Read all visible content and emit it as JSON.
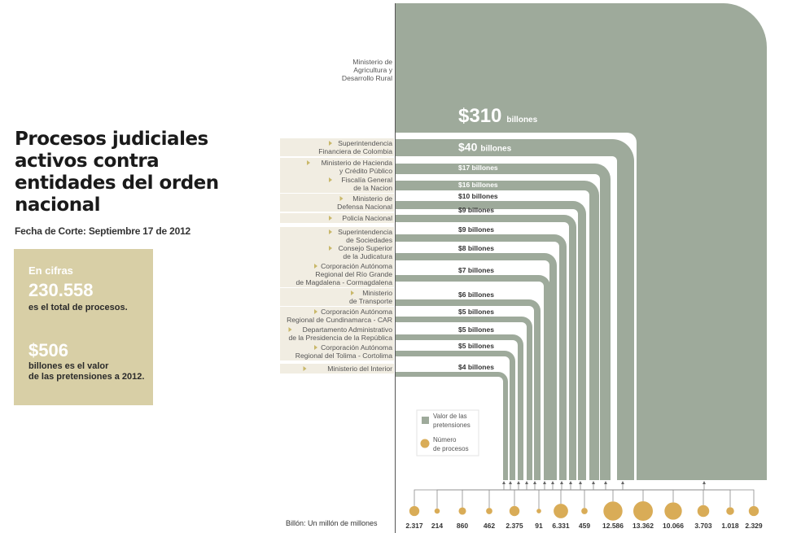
{
  "title": "Procesos judiciales activos contra entidades del orden nacional",
  "subtitle": "Fecha de Corte: Septiembre 17 de 2012",
  "cifras": {
    "heading": "En cifras",
    "total_procesos": "230.558",
    "total_procesos_text": "es el total de procesos.",
    "valor": "$506",
    "valor_text_1": "billones es el valor",
    "valor_text_2": "de las pretensiones a 2012."
  },
  "legend": {
    "valor_label_1": "Valor de las",
    "valor_label_2": "pretensiones",
    "numero_label_1": "Número",
    "numero_label_2": "de procesos"
  },
  "footnote": "Billón: Un millón de millones",
  "colors": {
    "bar": "#9eaa9b",
    "dot": "#d9ac57",
    "band": "#f1ede2",
    "box": "#d8cfa6"
  },
  "chart_data": {
    "type": "bar",
    "categories": [
      [
        "Ministerio de",
        "Agricultura y",
        "Desarrollo Rural"
      ],
      [
        "Superintendencia",
        "Financiera de Colombia"
      ],
      [
        "Ministerio de Hacienda",
        "y Crédito Público"
      ],
      [
        "Fiscalía General",
        "de la Nacion"
      ],
      [
        "Ministerio de",
        "Defensa Nacional"
      ],
      [
        "Policía Nacional"
      ],
      [
        "Superintendencia",
        "de Sociedades"
      ],
      [
        "Consejo Superior",
        "de la Judicatura"
      ],
      [
        "Corporación Autónoma",
        "Regional del Río Grande",
        "de Magdalena - Cormagdalena"
      ],
      [
        "Ministerio",
        "de Transporte"
      ],
      [
        "Corporación Autónoma",
        "Regional de Cundinamarca - CAR"
      ],
      [
        "Departamento Administrativo",
        "de la Presidencia de la República"
      ],
      [
        "Corporación Autónoma",
        "Regional del Tolima - Cortolima"
      ],
      [
        "Ministerio del Interior"
      ]
    ],
    "series": [
      {
        "name": "Valor de las pretensiones",
        "values": [
          310,
          40,
          17,
          16,
          10,
          9,
          9,
          8,
          7,
          6,
          5,
          5,
          5,
          4
        ],
        "labels": [
          "$310",
          "$40",
          "$17 billones",
          "$16 billones",
          "$10 billones",
          "$9 billones",
          "$9 billones",
          "$8 billones",
          "$7 billones",
          "$6 billones",
          "$5 billones",
          "$5 billones",
          "$5 billones",
          "$4 billones"
        ],
        "unit": "billones"
      },
      {
        "name": "Número de procesos",
        "values": [
          2317,
          214,
          860,
          462,
          2375,
          91,
          6331,
          459,
          12586,
          13362,
          10066,
          3703,
          1018,
          2329
        ],
        "labels": [
          "2.317",
          "214",
          "860",
          "462",
          "2.375",
          "91",
          "6.331",
          "459",
          "12.586",
          "13.362",
          "10.066",
          "3.703",
          "1.018",
          "2.329"
        ]
      }
    ]
  }
}
